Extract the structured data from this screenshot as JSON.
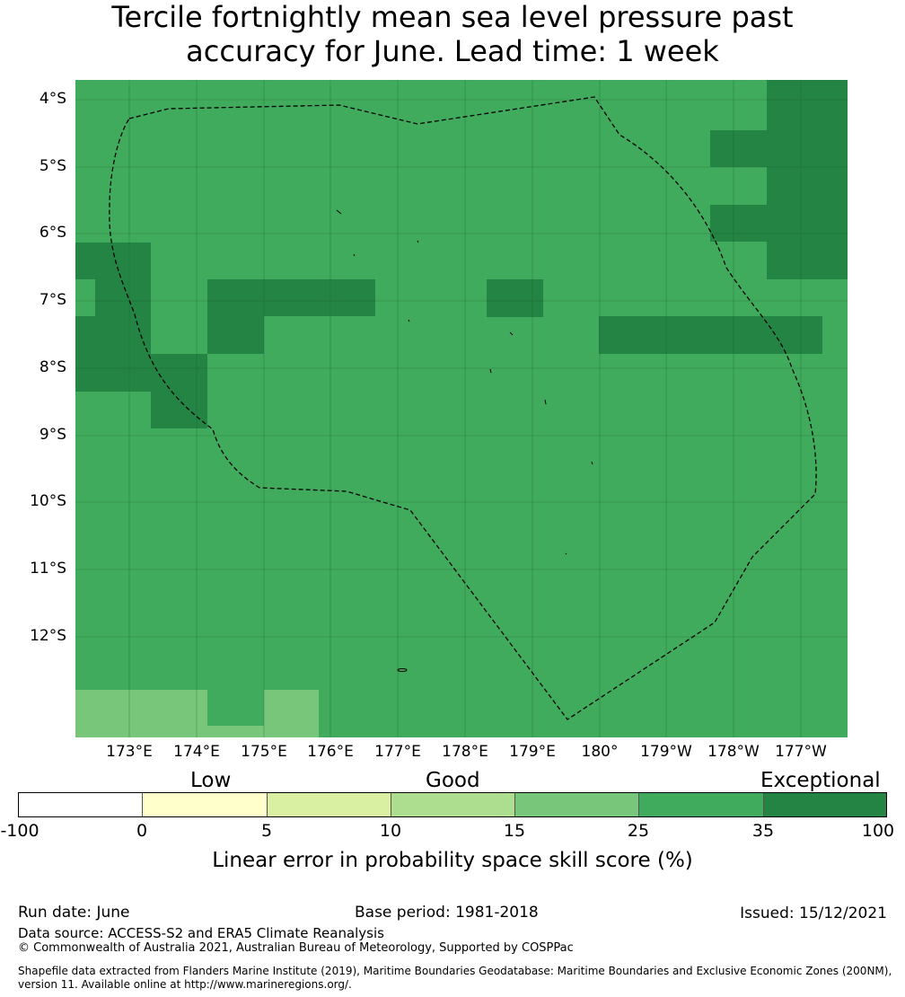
{
  "title_line1": "Tercile fortnightly mean sea level pressure past",
  "title_line2": "accuracy for June. Lead time: 1 week",
  "map": {
    "lat_labels": [
      "4°S",
      "5°S",
      "6°S",
      "7°S",
      "8°S",
      "9°S",
      "10°S",
      "11°S",
      "12°S"
    ],
    "lon_labels": [
      "173°E",
      "174°E",
      "175°E",
      "176°E",
      "177°E",
      "178°E",
      "179°E",
      "180°",
      "179°W",
      "178°W",
      "177°W"
    ],
    "colors": {
      "base": "#41ab5d",
      "dark": "#238443",
      "light": "#78c679",
      "gridline": "#1a5c30",
      "boundary": "#000000"
    },
    "boundary_style": "dashed"
  },
  "legend": {
    "categories": [
      "Low",
      "Good",
      "Exceptional"
    ],
    "ticks": [
      "-100",
      "0",
      "5",
      "10",
      "15",
      "25",
      "35",
      "100"
    ],
    "segment_colors": [
      "#ffffff",
      "#ffffcc",
      "#d9f0a3",
      "#addd8e",
      "#78c679",
      "#41ab5d",
      "#238443"
    ],
    "title": "Linear error in probability space skill score (%)"
  },
  "footer": {
    "run_date": "Run date: June",
    "base_period": "Base period: 1981-2018",
    "issued": "Issued: 15/12/2021",
    "data_source": "Data source: ACCESS-S2 and ERA5 Climate Reanalysis",
    "copyright": "© Commonwealth of Australia 2021, Australian Bureau of Meteorology, Supported by COSPPac",
    "shapefile_line1": "Shapefile data extracted from Flanders Marine Institute (2019), Maritime Boundaries Geodatabase: Maritime Boundaries and Exclusive Economic Zones (200NM),",
    "shapefile_line2": "version 11. Available online at http://www.marineregions.org/."
  }
}
